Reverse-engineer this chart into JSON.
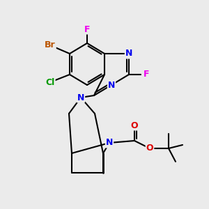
{
  "background_color": "#ebebeb",
  "bond_color": "#000000",
  "atom_colors": {
    "N": "#0000ee",
    "O": "#dd0000",
    "F": "#ee00ee",
    "Br": "#bb5500",
    "Cl": "#009900",
    "C": "#000000"
  },
  "figsize": [
    3.0,
    3.0
  ],
  "dpi": 100
}
